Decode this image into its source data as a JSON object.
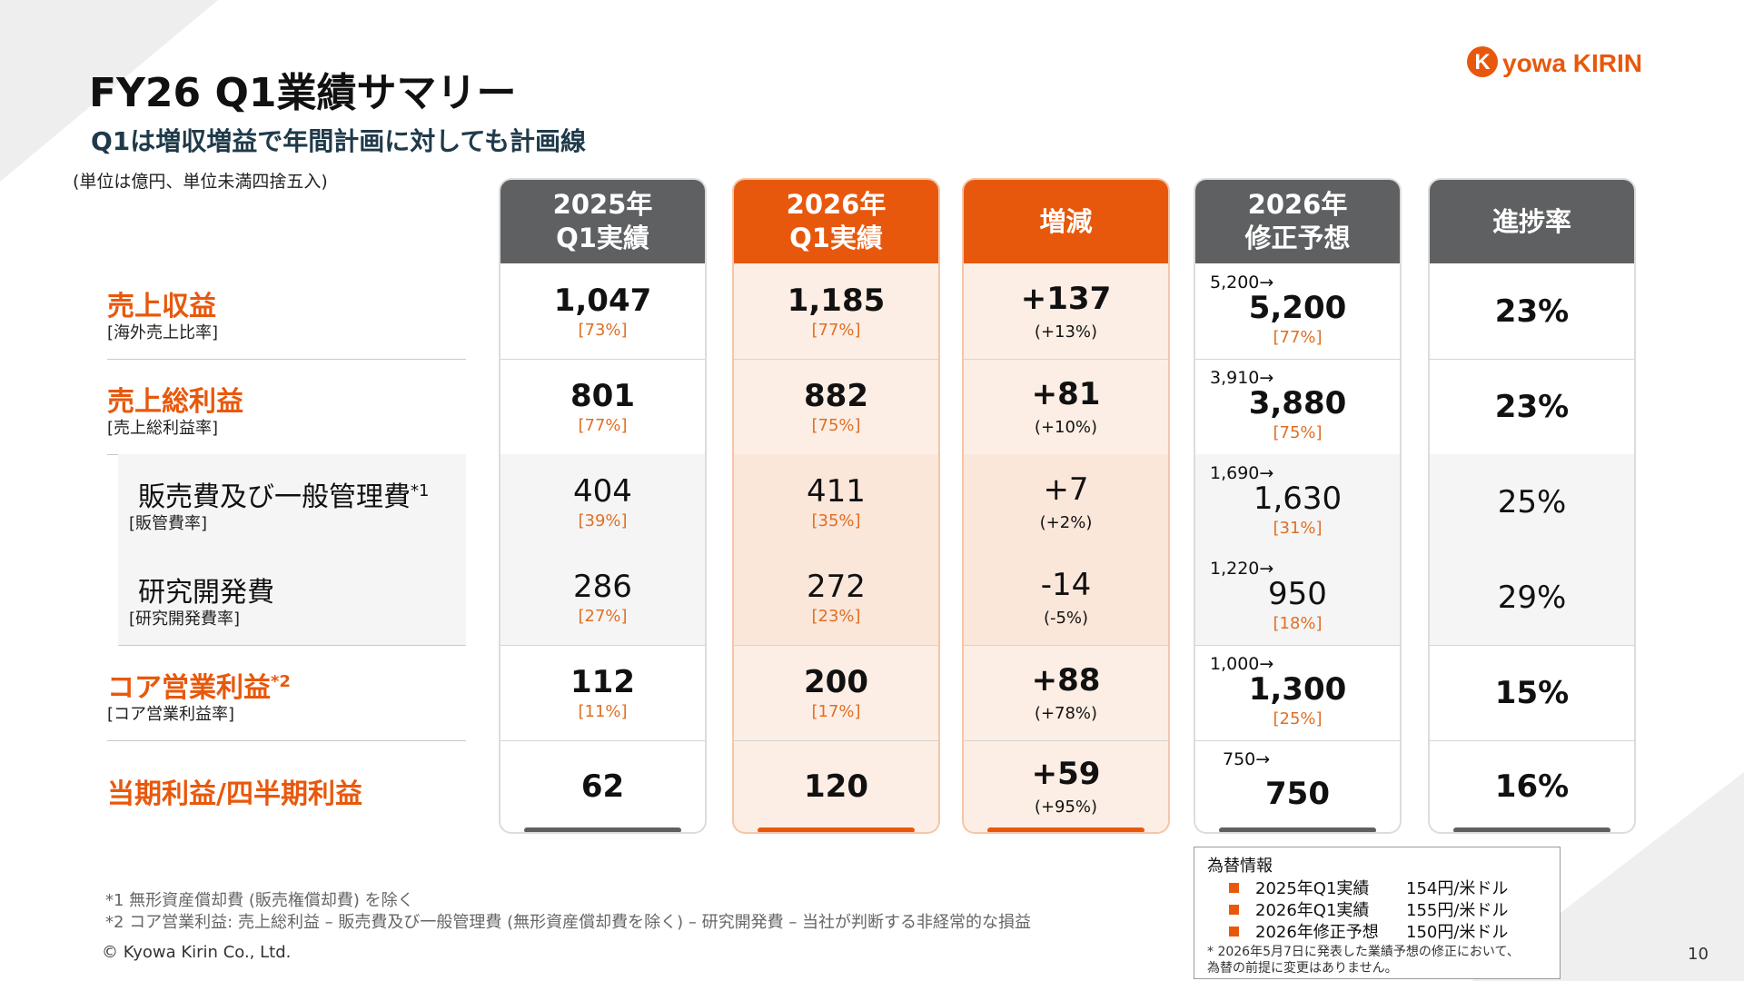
{
  "title": "FY26 Q1業績サマリー",
  "subtitle": "Q1は増収増益で年間計画に対しても計画線",
  "unit_note": "(単位は億円、単位未満四捨五入)",
  "brand": {
    "logo_text": "KYOWA KIRIN",
    "color": "#e8580c"
  },
  "rows": [
    {
      "label": "売上収益",
      "sub": "[海外売上比率]"
    },
    {
      "label": "売上総利益",
      "sub": "[売上総利益率]"
    },
    {
      "label": "販売費及び一般管理費",
      "sup": "*1",
      "sub": "[販管費率]"
    },
    {
      "label": "研究開発費",
      "sub": "[研究開発費率]"
    },
    {
      "label": "コア営業利益",
      "sup": "*2",
      "sub": "[コア営業利益率]"
    },
    {
      "label": "当期利益/四半期利益",
      "sub": ""
    }
  ],
  "columns": {
    "c2025": {
      "header_l1": "2025年",
      "header_l2": "Q1実績",
      "values": [
        "1,047",
        "801",
        "404",
        "286",
        "112",
        "62"
      ],
      "ratios": [
        "[73%]",
        "[77%]",
        "[39%]",
        "[27%]",
        "[11%]",
        ""
      ]
    },
    "c2026": {
      "header_l1": "2026年",
      "header_l2": "Q1実績",
      "values": [
        "1,185",
        "882",
        "411",
        "272",
        "200",
        "120"
      ],
      "ratios": [
        "[77%]",
        "[75%]",
        "[35%]",
        "[23%]",
        "[17%]",
        ""
      ]
    },
    "change": {
      "header": "増減",
      "values": [
        "+137",
        "+81",
        "+7",
        "-14",
        "+88",
        "+59"
      ],
      "ratios": [
        "(+13%)",
        "(+10%)",
        "(+2%)",
        "(-5%)",
        "(+78%)",
        "(+95%)"
      ]
    },
    "forecast": {
      "header_l1": "2026年",
      "header_l2": "修正予想",
      "prev": [
        "5,200→",
        "3,910→",
        "1,690→",
        "1,220→",
        "1,000→",
        "750→"
      ],
      "values": [
        "5,200",
        "3,880",
        "1,630",
        "950",
        "1,300",
        "750"
      ],
      "ratios": [
        "[77%]",
        "[75%]",
        "[31%]",
        "[18%]",
        "[25%]",
        ""
      ]
    },
    "progress": {
      "header": "進捗率",
      "values": [
        "23%",
        "23%",
        "25%",
        "29%",
        "15%",
        "16%"
      ]
    }
  },
  "notes": {
    "n1": "*1 無形資産償却費 (販売権償却費) を除く",
    "n2": "*2 コア営業利益: 売上総利益 – 販売費及び一般管理費 (無形資産償却費を除く) – 研究開発費 – 当社が判断する非経常的な損益"
  },
  "fx": {
    "title": "為替情報",
    "items": [
      {
        "label": "2025年Q1実績",
        "rate": "154円/米ドル"
      },
      {
        "label": "2026年Q1実績",
        "rate": "155円/米ドル"
      },
      {
        "label": "2026年修正予想",
        "rate": "150円/米ドル"
      }
    ],
    "note_l1": "* 2026年5月7日に発表した業績予想の修正において、",
    "note_l2": "為替の前提に変更はありません。"
  },
  "copyright": "© Kyowa Kirin Co., Ltd.",
  "page_number": "10"
}
